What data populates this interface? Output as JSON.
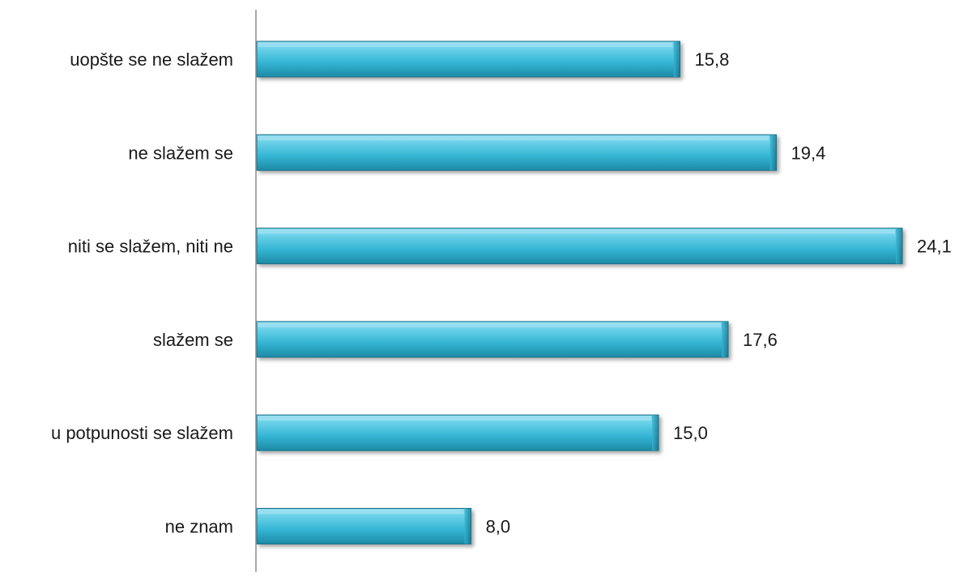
{
  "chart_data": {
    "type": "bar",
    "orientation": "horizontal",
    "categories": [
      "uopšte se ne slažem",
      "ne slažem se",
      "niti se slažem, niti ne",
      "slažem se",
      "u potpunosti se slažem",
      "ne znam"
    ],
    "values": [
      15.8,
      19.4,
      24.1,
      17.6,
      15.0,
      8.0
    ],
    "value_labels": [
      "15,8",
      "19,4",
      "24,1",
      "17,6",
      "15,0",
      "8,0"
    ],
    "title": "",
    "xlabel": "",
    "ylabel": "",
    "xlim": [
      0,
      24.1
    ],
    "grid": false,
    "legend": "none",
    "colors": {
      "bar_light": "#6fd3ea",
      "bar_mid": "#34b5d3",
      "bar_dark": "#1d8aa5",
      "bar_edge": "#1a6f86",
      "axis": "#8c8c8c",
      "text": "#1a1a1a"
    }
  }
}
